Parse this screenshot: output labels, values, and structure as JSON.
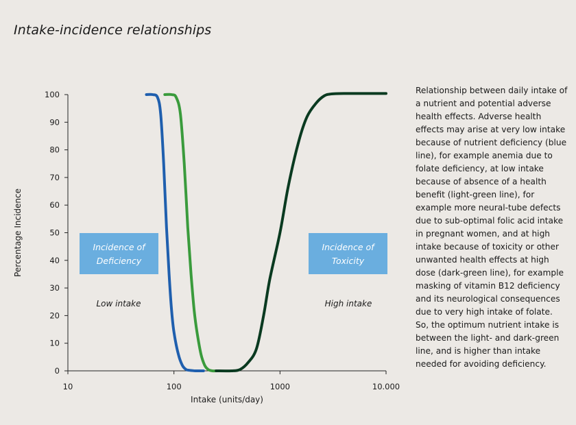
{
  "page": {
    "title": "Intake-incidence relationships",
    "caption": "Relationship between daily intake of a nutrient and potential adverse health effects. Adverse health effects may arise at very low intake because of nutrient deficiency (blue line), for example anemia due to folate deficiency, at low intake because of absence of a health benefit (light-green line), for example more neural-tube defects due to sub-optimal folic acid intake in pregnant women, and at high intake because of toxicity or other unwanted health effects at high dose (dark-green line), for example masking of vitamin B12 deficiency and its neurological consequences due to very high intake of folate. So, the optimum nutrient intake is between the light- and dark-green line, and is higher than intake needed for avoiding deficiency."
  },
  "chart_data": {
    "type": "line",
    "title": "Intake-incidence relationships",
    "xlabel": "Intake (units/day)",
    "ylabel": "Percentage Incidence",
    "xscale": "log",
    "xlim": [
      10,
      10000
    ],
    "ylim": [
      0,
      100
    ],
    "xticks": [
      10,
      100,
      1000,
      10000
    ],
    "xtick_labels": [
      "10",
      "100",
      "1000",
      "10.000"
    ],
    "yticks": [
      0,
      10,
      20,
      30,
      40,
      50,
      60,
      70,
      80,
      90,
      100
    ],
    "grid": false,
    "series": [
      {
        "color": "#1f5fae",
        "points": [
          [
            55,
            100
          ],
          [
            63,
            100
          ],
          [
            70,
            99
          ],
          [
            75,
            93
          ],
          [
            80,
            75
          ],
          [
            85,
            52
          ],
          [
            90,
            35
          ],
          [
            95,
            22
          ],
          [
            100,
            14
          ],
          [
            110,
            6
          ],
          [
            120,
            2
          ],
          [
            130,
            0.5
          ],
          [
            140,
            0.2
          ],
          [
            160,
            0
          ],
          [
            190,
            0
          ]
        ]
      },
      {
        "color": "#3a9b3c",
        "points": [
          [
            82,
            100
          ],
          [
            95,
            100
          ],
          [
            105,
            99
          ],
          [
            115,
            93
          ],
          [
            125,
            75
          ],
          [
            135,
            52
          ],
          [
            145,
            35
          ],
          [
            155,
            22
          ],
          [
            165,
            14
          ],
          [
            180,
            6
          ],
          [
            195,
            2
          ],
          [
            210,
            0.5
          ],
          [
            230,
            0
          ],
          [
            260,
            0
          ]
        ]
      },
      {
        "color": "#0a3a20",
        "points": [
          [
            250,
            0
          ],
          [
            350,
            0
          ],
          [
            420,
            0.5
          ],
          [
            500,
            3
          ],
          [
            600,
            8
          ],
          [
            700,
            20
          ],
          [
            800,
            33
          ],
          [
            1000,
            50
          ],
          [
            1200,
            67
          ],
          [
            1500,
            83
          ],
          [
            1800,
            92
          ],
          [
            2200,
            97
          ],
          [
            2600,
            99.5
          ],
          [
            3000,
            100.2
          ],
          [
            4000,
            100.4
          ],
          [
            10000,
            100.4
          ]
        ]
      }
    ],
    "annotations": {
      "deficiency_box": "Incidence of\nDeficiency",
      "toxicity_box": "Incidence of\nToxicity",
      "low_intake": "Low intake",
      "high_intake": "High intake",
      "box_color": "#6aaedf"
    }
  }
}
